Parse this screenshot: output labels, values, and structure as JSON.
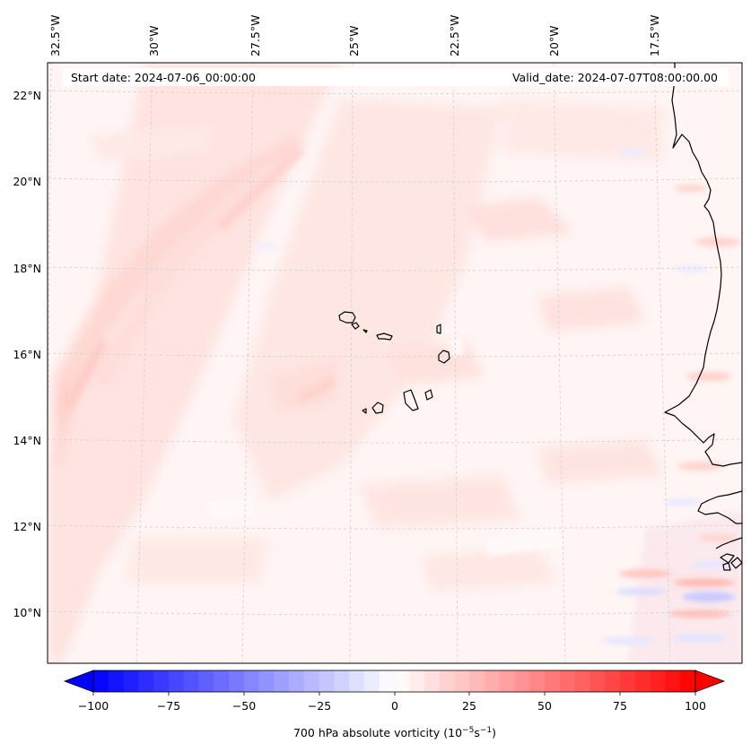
{
  "header": {
    "start_date": "Start date: 2024-07-06_00:00:00",
    "valid_date": "Valid_date: 2024-07-07T08:00:00.00"
  },
  "longitude_labels": [
    "32.5°W",
    "30°W",
    "27.5°W",
    "25°W",
    "22.5°W",
    "20°W",
    "17.5°W"
  ],
  "latitude_labels": [
    "22°N",
    "20°N",
    "18°N",
    "16°N",
    "14°N",
    "12°N",
    "10°N"
  ],
  "colorbar": {
    "ticks": [
      "−100",
      "−75",
      "−50",
      "−25",
      "0",
      "25",
      "50",
      "75",
      "100"
    ],
    "min": -100,
    "max": 100,
    "label_main": "700 hPa absolute vorticity (10",
    "label_exp1": "−5",
    "label_mid": "s",
    "label_exp2": "−1",
    "label_end": ")",
    "colormap": "bwr",
    "extend": "both"
  },
  "colors": {
    "negative": "#0000ff",
    "zero": "#ffffff",
    "positive": "#ff0000",
    "coastline": "#000000",
    "gridline": "#cccccc"
  }
}
